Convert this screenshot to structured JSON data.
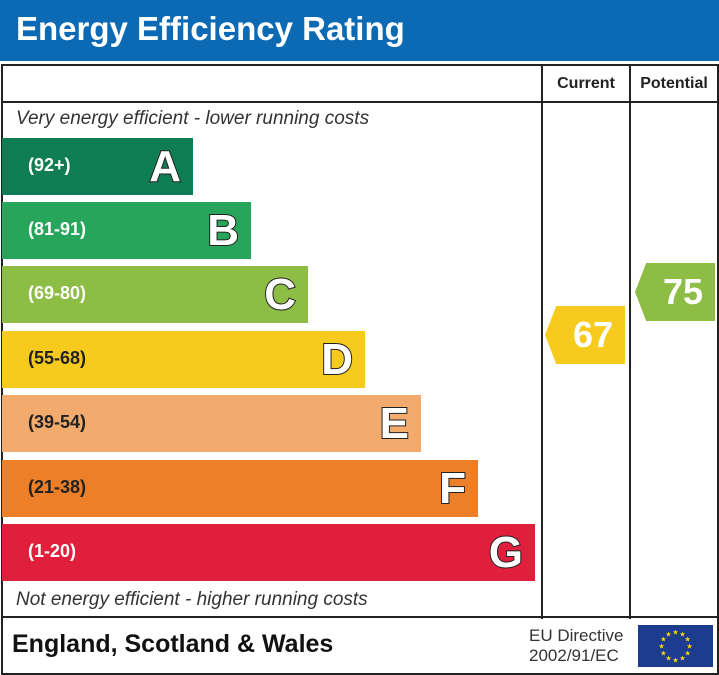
{
  "title": "Energy Efficiency Rating",
  "headers": {
    "current": "Current",
    "potential": "Potential"
  },
  "top_note": "Very energy efficient - lower running costs",
  "bottom_note": "Not energy efficient - higher running costs",
  "footer": {
    "region": "England, Scotland & Wales",
    "directive_line1": "EU Directive",
    "directive_line2": "2002/91/EC"
  },
  "chart_data": {
    "type": "bar",
    "bands": [
      {
        "letter": "A",
        "range": "(92+)",
        "color": "#0f7d54"
      },
      {
        "letter": "B",
        "range": "(81-91)",
        "color": "#27a55a"
      },
      {
        "letter": "C",
        "range": "(69-80)",
        "color": "#8dbd45"
      },
      {
        "letter": "D",
        "range": "(55-68)",
        "color": "#f6cb1d"
      },
      {
        "letter": "E",
        "range": "(39-54)",
        "color": "#f2ab6d"
      },
      {
        "letter": "F",
        "range": "(21-38)",
        "color": "#ec7f28"
      },
      {
        "letter": "G",
        "range": "(1-20)",
        "color": "#e01f3d"
      }
    ],
    "current": {
      "value": 67,
      "band": "D",
      "color": "#f6cb1d"
    },
    "potential": {
      "value": 75,
      "band": "C",
      "color": "#8dbd45"
    }
  }
}
